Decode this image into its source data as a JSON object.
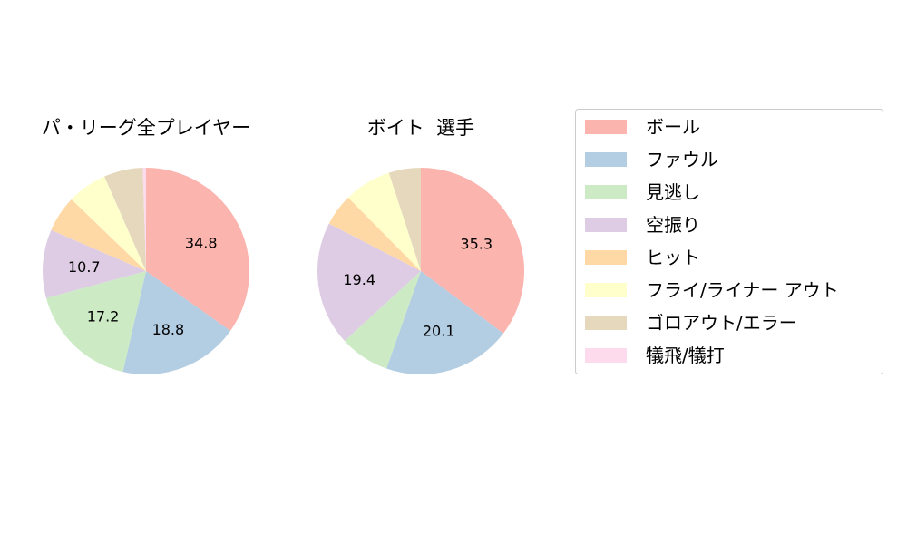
{
  "chart_data": [
    {
      "type": "pie",
      "title": "パ・リーグ全プレイヤー",
      "categories": [
        "ボール",
        "ファウル",
        "見逃し",
        "空振り",
        "ヒット",
        "フライ/ライナー アウト",
        "ゴロアウト/エラー",
        "犠飛/犠打"
      ],
      "values": [
        34.8,
        18.8,
        17.2,
        10.7,
        5.7,
        6.2,
        6.1,
        0.5
      ],
      "labels": [
        "34.8",
        "18.8",
        "17.2",
        "10.7",
        "",
        "",
        "",
        ""
      ]
    },
    {
      "type": "pie",
      "title": "ボイト  選手",
      "categories": [
        "ボール",
        "ファウル",
        "見逃し",
        "空振り",
        "ヒット",
        "フライ/ライナー アウト",
        "ゴロアウト/エラー",
        "犠飛/犠打"
      ],
      "values": [
        35.3,
        20.1,
        7.8,
        19.4,
        5.0,
        7.4,
        5.0,
        0.0
      ],
      "labels": [
        "35.3",
        "20.1",
        "",
        "19.4",
        "",
        "",
        "",
        ""
      ]
    }
  ],
  "legend": {
    "placement": "right",
    "items": [
      "ボール",
      "ファウル",
      "見逃し",
      "空振り",
      "ヒット",
      "フライ/ライナー アウト",
      "ゴロアウト/エラー",
      "犠飛/犠打"
    ],
    "colors": [
      "#fbb4ae",
      "#b3cde3",
      "#ccebc5",
      "#decbe4",
      "#fed9a6",
      "#ffffcc",
      "#e5d8bd",
      "#fddaec"
    ]
  }
}
